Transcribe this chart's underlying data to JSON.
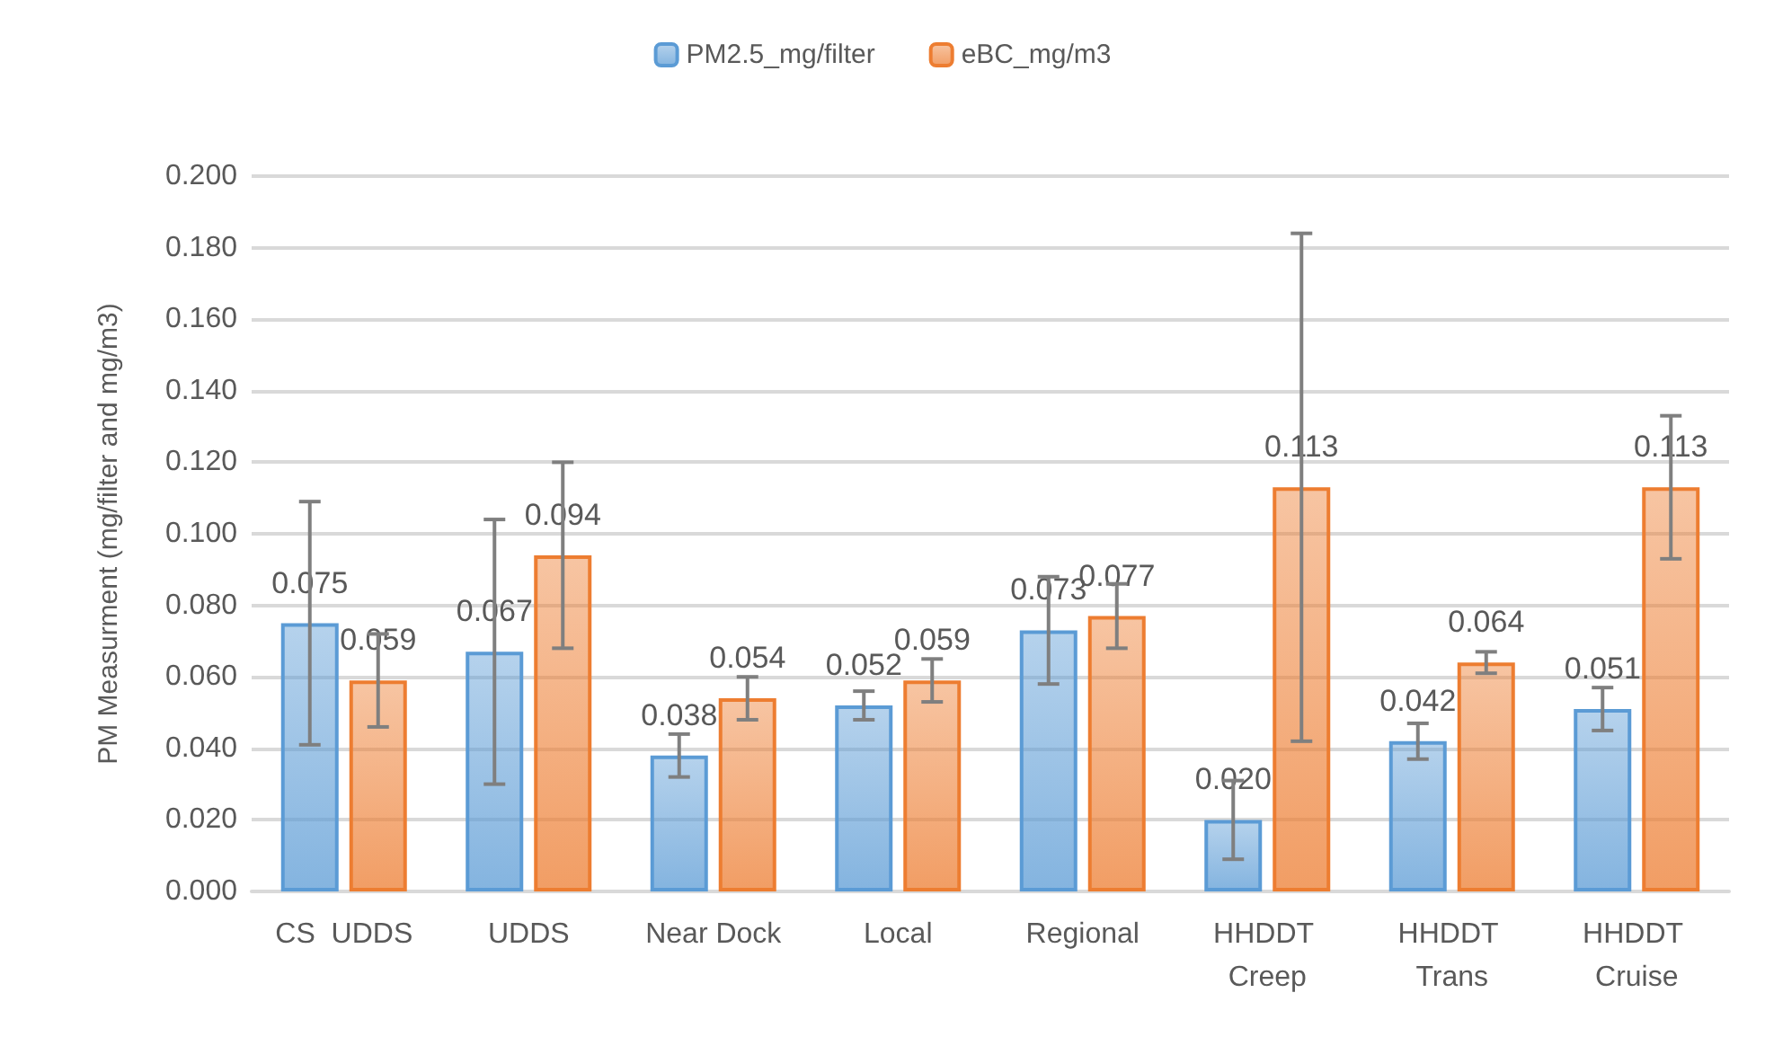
{
  "chart_data": {
    "type": "bar",
    "ylabel": "PM Measurment (mg/filter and mg/m3)",
    "categories": [
      "CS  UDDS",
      "UDDS",
      "Near Dock",
      "Local",
      "Regional",
      "HHDDT Creep",
      "HHDDT Trans",
      "HHDDT Cruise"
    ],
    "series": [
      {
        "name": "PM2.5_mg/filter",
        "color": "#5b9bd5",
        "values": [
          0.075,
          0.067,
          0.038,
          0.052,
          0.073,
          0.02,
          0.042,
          0.051
        ],
        "errors": [
          0.034,
          0.037,
          0.006,
          0.004,
          0.015,
          0.011,
          0.005,
          0.006
        ],
        "value_labels": [
          "0.075",
          "0.067",
          "0.038",
          "0.052",
          "0.073",
          "0.020",
          "0.042",
          "0.051"
        ]
      },
      {
        "name": "eBC_mg/m3",
        "color": "#ed7d31",
        "values": [
          0.059,
          0.094,
          0.054,
          0.059,
          0.077,
          0.113,
          0.064,
          0.113
        ],
        "errors": [
          0.013,
          0.026,
          0.006,
          0.006,
          0.009,
          0.071,
          0.003,
          0.02
        ],
        "value_labels": [
          "0.059",
          "0.094",
          "0.054",
          "0.059",
          "0.077",
          "0.113",
          "0.064",
          "0.113"
        ]
      }
    ],
    "ylim": [
      0,
      0.2
    ],
    "yticks": [
      {
        "value": 0,
        "label": "0.000"
      },
      {
        "value": 0.02,
        "label": "0.020"
      },
      {
        "value": 0.04,
        "label": "0.040"
      },
      {
        "value": 0.06,
        "label": "0.060"
      },
      {
        "value": 0.08,
        "label": "0.080"
      },
      {
        "value": 0.1,
        "label": "0.100"
      },
      {
        "value": 0.12,
        "label": "0.120"
      },
      {
        "value": 0.14,
        "label": "0.140"
      },
      {
        "value": 0.16,
        "label": "0.160"
      },
      {
        "value": 0.18,
        "label": "0.180"
      },
      {
        "value": 0.2,
        "label": "0.200"
      }
    ],
    "grid": "y",
    "legend": "top"
  }
}
